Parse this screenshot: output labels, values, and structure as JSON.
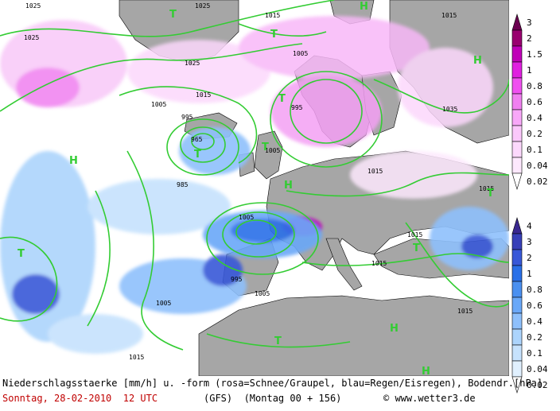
{
  "map": {
    "pressure_labels": [
      {
        "text": "1025"
      },
      {
        "text": "1025"
      },
      {
        "text": "1025"
      },
      {
        "text": "1025"
      },
      {
        "text": "1015"
      },
      {
        "text": "1015"
      },
      {
        "text": "1005"
      },
      {
        "text": "1005"
      },
      {
        "text": "995"
      },
      {
        "text": "995"
      },
      {
        "text": "985"
      },
      {
        "text": "1005"
      },
      {
        "text": "1015"
      },
      {
        "text": "1015"
      },
      {
        "text": "1015"
      },
      {
        "text": "1005"
      },
      {
        "text": "1015"
      },
      {
        "text": "1005"
      },
      {
        "text": "1015"
      },
      {
        "text": "1015"
      },
      {
        "text": "1035"
      },
      {
        "text": "965"
      },
      {
        "text": "1005"
      },
      {
        "text": "995"
      },
      {
        "text": "1015"
      }
    ],
    "pressure_symbols": [
      {
        "text": "T"
      },
      {
        "text": "T"
      },
      {
        "text": "T"
      },
      {
        "text": "T"
      },
      {
        "text": "T"
      },
      {
        "text": "T"
      },
      {
        "text": "T"
      },
      {
        "text": "T"
      },
      {
        "text": "T"
      },
      {
        "text": "H"
      },
      {
        "text": "H"
      },
      {
        "text": "H"
      },
      {
        "text": "H"
      },
      {
        "text": "H"
      },
      {
        "text": "H"
      }
    ],
    "colors": {
      "isobar": "#33cc33",
      "land": "#a6a6a6",
      "sea": "#ffffff",
      "coast": "#000000",
      "symbol": "#33cc33"
    }
  },
  "legend": {
    "snow_scale": [
      "3",
      "2",
      "1.5",
      "1",
      "0.8",
      "0.6",
      "0.4",
      "0.2",
      "0.1",
      "0.04",
      "0.02"
    ],
    "snow_colors": [
      "#6b0050",
      "#99006f",
      "#c000b8",
      "#e020e0",
      "#f050f0",
      "#f080f0",
      "#f8a8f8",
      "#fbc8fb",
      "#fcd8fc",
      "#fde8fd",
      "#ffffff"
    ],
    "rain_scale": [
      "4",
      "3",
      "2",
      "1",
      "0.8",
      "0.6",
      "0.4",
      "0.2",
      "0.1",
      "0.04",
      "0.02"
    ],
    "rain_colors": [
      "#3a2890",
      "#3840b8",
      "#3858d8",
      "#2a70e8",
      "#4a90f0",
      "#6aa8f8",
      "#8ec0fc",
      "#acd4fc",
      "#c6e2fd",
      "#e0f0fe",
      "#ffffff"
    ]
  },
  "footer": {
    "line1": "Niederschlagsstaerke [mm/h] u. -form (rosa=Schnee/Graupel, blau=Regen/Eisregen), Bodendr.[hPa]",
    "date": "Sonntag, 28-02-2010  12 UTC",
    "model": "(GFS)  (Montag 00 + 156)",
    "copyright": "© www.wetter3.de"
  }
}
